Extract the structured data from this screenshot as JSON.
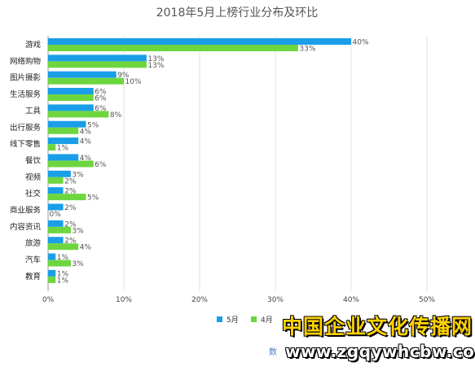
{
  "chart_data": {
    "type": "bar",
    "orientation": "horizontal",
    "title": "2018年5月上榜行业分布及环比",
    "categories": [
      "游戏",
      "网络购物",
      "图片摄影",
      "生活服务",
      "工具",
      "出行服务",
      "线下零售",
      "餐饮",
      "视频",
      "社交",
      "商业服务",
      "内容资讯",
      "旅游",
      "汽车",
      "教育"
    ],
    "series": [
      {
        "name": "5月",
        "color": "#1a9ee8",
        "values": [
          40,
          13,
          9,
          6,
          6,
          5,
          4,
          4,
          3,
          2,
          2,
          2,
          2,
          1,
          1
        ]
      },
      {
        "name": "4月",
        "color": "#6dd63f",
        "values": [
          33,
          13,
          10,
          6,
          8,
          4,
          1,
          6,
          2,
          5,
          0,
          3,
          4,
          3,
          1
        ]
      }
    ],
    "x_ticks": [
      "0%",
      "10%",
      "20%",
      "30%",
      "40%",
      "50%"
    ],
    "xlim": [
      0,
      50
    ],
    "value_suffix": "%",
    "grid": true,
    "legend_position": "bottom-right"
  },
  "footer": {
    "source_fragment": "数据"
  },
  "watermark": {
    "name": "中国企业文化传播网",
    "url": "www.zgqywhcbw.com"
  }
}
